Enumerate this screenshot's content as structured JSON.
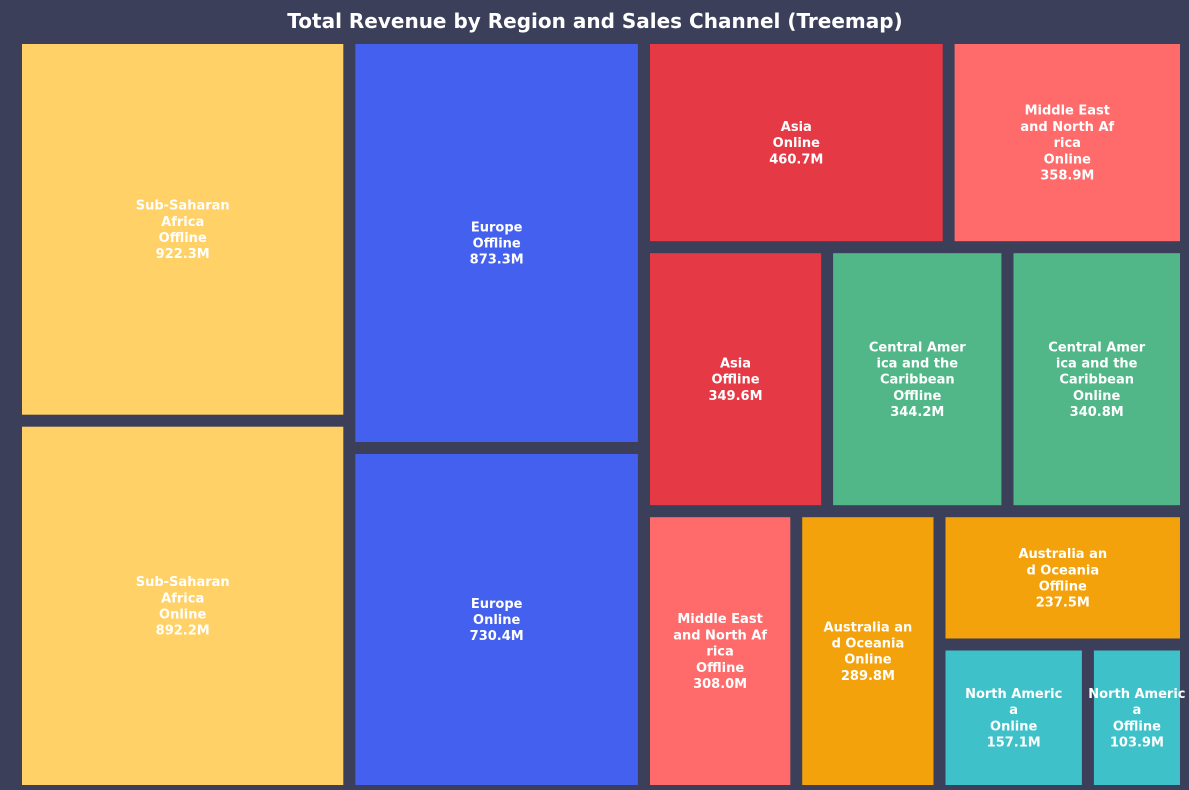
{
  "chart_data": {
    "type": "treemap",
    "title": "Total Revenue by Region and Sales Channel (Treemap)",
    "unit": "M",
    "tiles": [
      {
        "region": "Sub-Saharan Africa",
        "channel": "Offline",
        "value": 922.3,
        "value_label": "922.3M",
        "label_lines": [
          "Sub-Saharan",
          "Africa",
          "Offline",
          "922.3M"
        ],
        "color": "#ffd166"
      },
      {
        "region": "Sub-Saharan Africa",
        "channel": "Online",
        "value": 892.2,
        "value_label": "892.2M",
        "label_lines": [
          "Sub-Saharan",
          "Africa",
          "Online",
          "892.2M"
        ],
        "color": "#ffd166"
      },
      {
        "region": "Europe",
        "channel": "Offline",
        "value": 873.3,
        "value_label": "873.3M",
        "label_lines": [
          "Europe",
          "Offline",
          "873.3M"
        ],
        "color": "#4361ee"
      },
      {
        "region": "Europe",
        "channel": "Online",
        "value": 730.4,
        "value_label": "730.4M",
        "label_lines": [
          "Europe",
          "Online",
          "730.4M"
        ],
        "color": "#4361ee"
      },
      {
        "region": "Asia",
        "channel": "Online",
        "value": 460.7,
        "value_label": "460.7M",
        "label_lines": [
          "Asia",
          "Online",
          "460.7M"
        ],
        "color": "#e63946"
      },
      {
        "region": "Middle East and North Africa",
        "channel": "Online",
        "value": 358.9,
        "value_label": "358.9M",
        "label_lines": [
          "Middle East",
          "and North Af",
          "rica",
          "Online",
          "358.9M"
        ],
        "color": "#ff6b6b"
      },
      {
        "region": "Asia",
        "channel": "Offline",
        "value": 349.6,
        "value_label": "349.6M",
        "label_lines": [
          "Asia",
          "Offline",
          "349.6M"
        ],
        "color": "#e63946"
      },
      {
        "region": "Central America and the Caribbean",
        "channel": "Offline",
        "value": 344.2,
        "value_label": "344.2M",
        "label_lines": [
          "Central Amer",
          "ica and the",
          "Caribbean",
          "Offline",
          "344.2M"
        ],
        "color": "#52b788"
      },
      {
        "region": "Central America and the Caribbean",
        "channel": "Online",
        "value": 340.8,
        "value_label": "340.8M",
        "label_lines": [
          "Central Amer",
          "ica and the",
          "Caribbean",
          "Online",
          "340.8M"
        ],
        "color": "#52b788"
      },
      {
        "region": "Middle East and North Africa",
        "channel": "Offline",
        "value": 308.0,
        "value_label": "308.0M",
        "label_lines": [
          "Middle East",
          "and North Af",
          "rica",
          "Offline",
          "308.0M"
        ],
        "color": "#ff6b6b"
      },
      {
        "region": "Australia and Oceania",
        "channel": "Online",
        "value": 289.8,
        "value_label": "289.8M",
        "label_lines": [
          "Australia an",
          "d Oceania",
          "Online",
          "289.8M"
        ],
        "color": "#f3a20b"
      },
      {
        "region": "Australia and Oceania",
        "channel": "Offline",
        "value": 237.5,
        "value_label": "237.5M",
        "label_lines": [
          "Australia an",
          "d Oceania",
          "Offline",
          "237.5M"
        ],
        "color": "#f3a20b"
      },
      {
        "region": "North America",
        "channel": "Online",
        "value": 157.1,
        "value_label": "157.1M",
        "label_lines": [
          "North Americ",
          "a",
          "Online",
          "157.1M"
        ],
        "color": "#3fc1c9"
      },
      {
        "region": "North America",
        "channel": "Offline",
        "value": 103.9,
        "value_label": "103.9M",
        "label_lines": [
          "North Americ",
          "a",
          "Offline",
          "103.9M"
        ],
        "color": "#3fc1c9"
      }
    ]
  }
}
